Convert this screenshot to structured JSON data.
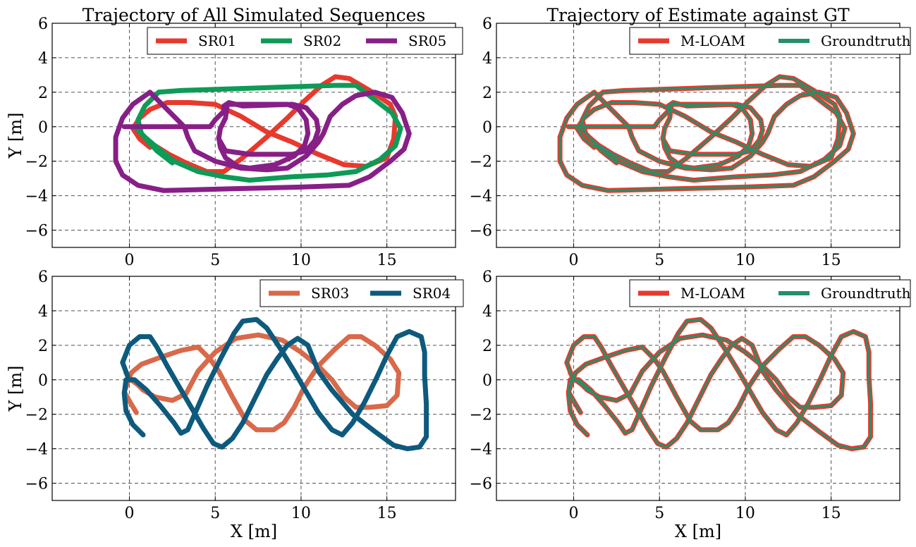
{
  "chart_data": [
    {
      "type": "line",
      "title": "Trajectory of All Simulated Sequences",
      "xlabel": "",
      "ylabel": "Y [m]",
      "xlim": [
        -4.5,
        19
      ],
      "ylim": [
        -7,
        6
      ],
      "xticks": [
        0,
        5,
        10,
        15
      ],
      "yticks": [
        -6,
        -4,
        -2,
        0,
        2,
        4,
        6
      ],
      "grid": true,
      "legend": "top-right",
      "legend_columns": 3,
      "series": [
        {
          "name": "SR01",
          "color": "#e8392d",
          "width": 7,
          "points": [
            [
              1.2,
              -1.2
            ],
            [
              0.6,
              -0.7
            ],
            [
              0.2,
              -0.1
            ],
            [
              0.6,
              0.5
            ],
            [
              1.2,
              1.0
            ],
            [
              2.2,
              1.4
            ],
            [
              3.5,
              1.4
            ],
            [
              5.0,
              1.3
            ],
            [
              6.5,
              0.6
            ],
            [
              8.0,
              -0.3
            ],
            [
              9.5,
              -0.9
            ],
            [
              11.0,
              -1.6
            ],
            [
              12.5,
              -2.2
            ],
            [
              13.8,
              -2.3
            ],
            [
              15.0,
              -1.8
            ],
            [
              15.4,
              -0.7
            ],
            [
              15.5,
              0.6
            ],
            [
              15.2,
              1.3
            ],
            [
              14.0,
              2.1
            ],
            [
              12.8,
              2.8
            ],
            [
              12.0,
              2.9
            ],
            [
              11.2,
              2.4
            ],
            [
              10.2,
              1.5
            ],
            [
              9.2,
              0.5
            ],
            [
              8.0,
              -0.6
            ],
            [
              6.6,
              -1.8
            ],
            [
              5.5,
              -2.6
            ],
            [
              4.5,
              -2.6
            ],
            [
              3.3,
              -2.1
            ],
            [
              2.3,
              -1.6
            ],
            [
              1.5,
              -1.1
            ]
          ]
        },
        {
          "name": "SR02",
          "color": "#0d9b57",
          "width": 7,
          "points": [
            [
              2.5,
              -2.1
            ],
            [
              1.6,
              -1.4
            ],
            [
              0.7,
              -0.4
            ],
            [
              0.5,
              0.4
            ],
            [
              0.9,
              1.2
            ],
            [
              1.7,
              2.0
            ],
            [
              3.0,
              2.1
            ],
            [
              6.0,
              2.2
            ],
            [
              9.0,
              2.3
            ],
            [
              12.0,
              2.4
            ],
            [
              13.2,
              2.4
            ],
            [
              14.5,
              1.4
            ],
            [
              15.3,
              0.8
            ],
            [
              15.8,
              -0.1
            ],
            [
              15.5,
              -1.1
            ],
            [
              14.6,
              -1.9
            ],
            [
              13.2,
              -2.6
            ],
            [
              11.5,
              -2.8
            ],
            [
              9.5,
              -2.9
            ],
            [
              7.0,
              -3.1
            ],
            [
              5.5,
              -2.9
            ],
            [
              4.0,
              -2.6
            ],
            [
              2.6,
              -2.0
            ],
            [
              1.6,
              -1.2
            ],
            [
              0.9,
              -0.6
            ],
            [
              0.4,
              -0.1
            ]
          ]
        },
        {
          "name": "SR05",
          "color": "#871f87",
          "width": 7,
          "points": [
            [
              -0.3,
              0.0
            ],
            [
              2.0,
              0.0
            ],
            [
              3.2,
              0.0
            ],
            [
              3.4,
              -0.6
            ],
            [
              3.8,
              -1.4
            ],
            [
              5.0,
              -2.0
            ],
            [
              6.5,
              -2.4
            ],
            [
              8.0,
              -2.5
            ],
            [
              9.2,
              -2.4
            ],
            [
              10.3,
              -1.7
            ],
            [
              11.0,
              -0.9
            ],
            [
              11.3,
              -0.4
            ],
            [
              11.7,
              0.6
            ],
            [
              12.4,
              1.3
            ],
            [
              13.2,
              1.8
            ],
            [
              14.3,
              2.0
            ],
            [
              15.3,
              1.7
            ],
            [
              15.9,
              0.8
            ],
            [
              16.3,
              -0.4
            ],
            [
              16.0,
              -1.3
            ],
            [
              15.2,
              -2.0
            ],
            [
              14.0,
              -2.9
            ],
            [
              12.8,
              -3.4
            ],
            [
              10.0,
              -3.5
            ],
            [
              6.0,
              -3.6
            ],
            [
              2.0,
              -3.7
            ],
            [
              0.5,
              -3.4
            ],
            [
              -0.4,
              -2.8
            ],
            [
              -0.8,
              -2.0
            ],
            [
              -0.8,
              -0.6
            ],
            [
              -0.4,
              0.5
            ],
            [
              0.2,
              1.3
            ],
            [
              1.2,
              2.0
            ],
            [
              3.2,
              0.0
            ],
            [
              4.7,
              0.0
            ],
            [
              5.0,
              0.4
            ],
            [
              5.5,
              0.9
            ],
            [
              5.5,
              1.2
            ],
            [
              5.8,
              1.4
            ],
            [
              6.6,
              1.2
            ],
            [
              9.5,
              1.3
            ],
            [
              10.3,
              1.1
            ],
            [
              10.9,
              0.4
            ],
            [
              11.0,
              -0.2
            ],
            [
              10.8,
              -0.8
            ],
            [
              10.3,
              -1.4
            ],
            [
              9.5,
              -1.6
            ],
            [
              8.2,
              -1.6
            ],
            [
              7.0,
              -1.6
            ],
            [
              5.6,
              -1.4
            ],
            [
              5.2,
              -0.7
            ],
            [
              5.3,
              -0.1
            ],
            [
              5.6,
              0.5
            ],
            [
              5.7,
              1.3
            ],
            [
              6.4,
              1.3
            ],
            [
              9.2,
              1.3
            ],
            [
              9.8,
              1.1
            ],
            [
              10.3,
              0.4
            ],
            [
              10.4,
              -0.4
            ],
            [
              10.2,
              -1.1
            ],
            [
              9.6,
              -1.7
            ],
            [
              8.5,
              -2.2
            ],
            [
              7.0,
              -2.4
            ],
            [
              6.3,
              -2.3
            ],
            [
              5.6,
              -1.8
            ],
            [
              5.3,
              -1.2
            ],
            [
              5.2,
              -0.6
            ]
          ]
        }
      ]
    },
    {
      "type": "line",
      "title": "Trajectory of Estimate against GT",
      "xlabel": "",
      "ylabel": "",
      "xlim": [
        -4.5,
        19
      ],
      "ylim": [
        -7,
        6
      ],
      "xticks": [
        0,
        5,
        10,
        15
      ],
      "yticks": [
        -6,
        -4,
        -2,
        0,
        2,
        4,
        6
      ],
      "grid": true,
      "legend": "top-right",
      "legend_columns": 2,
      "overlay": "combined",
      "series": [
        {
          "name": "M-LOAM",
          "color": "#e8392d",
          "width": 7
        },
        {
          "name": "Groundtruth",
          "color": "#23906a",
          "width": 3
        }
      ]
    },
    {
      "type": "line",
      "title": "",
      "xlabel": "X [m]",
      "ylabel": "Y [m]",
      "xlim": [
        -4.5,
        19
      ],
      "ylim": [
        -7,
        6
      ],
      "xticks": [
        0,
        5,
        10,
        15
      ],
      "yticks": [
        -6,
        -4,
        -2,
        0,
        2,
        4,
        6
      ],
      "grid": true,
      "legend": "top-right",
      "legend_columns": 2,
      "series": [
        {
          "name": "SR03",
          "color": "#d8694a",
          "width": 7,
          "points": [
            [
              0.4,
              -1.9
            ],
            [
              0.1,
              -1.4
            ],
            [
              -0.3,
              -0.7
            ],
            [
              0.1,
              0.4
            ],
            [
              0.7,
              0.9
            ],
            [
              1.8,
              1.3
            ],
            [
              3.0,
              1.7
            ],
            [
              4.0,
              1.9
            ],
            [
              4.7,
              1.2
            ],
            [
              5.2,
              0.5
            ],
            [
              6.0,
              -1.0
            ],
            [
              6.8,
              -2.4
            ],
            [
              7.4,
              -2.9
            ],
            [
              8.4,
              -2.9
            ],
            [
              9.0,
              -2.5
            ],
            [
              9.6,
              -1.6
            ],
            [
              10.2,
              -0.4
            ],
            [
              11.0,
              0.8
            ],
            [
              12.0,
              1.8
            ],
            [
              12.8,
              2.5
            ],
            [
              13.5,
              2.5
            ],
            [
              14.3,
              2.0
            ],
            [
              15.2,
              1.2
            ],
            [
              15.7,
              0.4
            ],
            [
              15.6,
              -0.9
            ],
            [
              15.0,
              -1.5
            ],
            [
              14.0,
              -1.6
            ],
            [
              13.2,
              -1.6
            ],
            [
              12.5,
              -1.0
            ],
            [
              11.8,
              0.0
            ],
            [
              11.0,
              0.8
            ],
            [
              10.0,
              1.6
            ],
            [
              8.9,
              2.3
            ],
            [
              7.5,
              2.6
            ],
            [
              6.2,
              2.4
            ],
            [
              5.0,
              1.6
            ],
            [
              4.0,
              0.5
            ],
            [
              3.3,
              -0.8
            ],
            [
              2.5,
              -1.2
            ],
            [
              1.5,
              -1.0
            ],
            [
              0.8,
              -0.6
            ],
            [
              0.5,
              -0.3
            ],
            [
              0.1,
              0.0
            ],
            [
              -0.2,
              0.4
            ]
          ]
        },
        {
          "name": "SR04",
          "color": "#0d5a7d",
          "width": 7,
          "points": [
            [
              0.8,
              -3.2
            ],
            [
              0.2,
              -2.6
            ],
            [
              -0.2,
              -1.8
            ],
            [
              -0.3,
              -0.8
            ],
            [
              -0.2,
              0.0
            ],
            [
              0.3,
              0.0
            ],
            [
              1.0,
              -0.6
            ],
            [
              1.8,
              -1.5
            ],
            [
              2.6,
              -2.5
            ],
            [
              3.0,
              -3.1
            ],
            [
              3.4,
              -2.9
            ],
            [
              3.8,
              -2.0
            ],
            [
              4.5,
              -0.4
            ],
            [
              5.3,
              1.2
            ],
            [
              6.1,
              2.7
            ],
            [
              6.6,
              3.4
            ],
            [
              7.4,
              3.5
            ],
            [
              8.0,
              3.0
            ],
            [
              8.8,
              1.8
            ],
            [
              9.6,
              0.5
            ],
            [
              10.3,
              -0.7
            ],
            [
              11.0,
              -1.9
            ],
            [
              11.8,
              -2.9
            ],
            [
              12.4,
              -3.2
            ],
            [
              13.0,
              -2.5
            ],
            [
              13.7,
              -1.3
            ],
            [
              14.4,
              0.1
            ],
            [
              15.0,
              1.4
            ],
            [
              15.6,
              2.5
            ],
            [
              16.3,
              2.8
            ],
            [
              17.0,
              2.5
            ],
            [
              17.2,
              1.6
            ],
            [
              17.2,
              0.2
            ],
            [
              17.3,
              -1.4
            ],
            [
              17.3,
              -3.3
            ],
            [
              16.9,
              -3.9
            ],
            [
              16.2,
              -4.0
            ],
            [
              15.4,
              -3.8
            ],
            [
              14.3,
              -3.0
            ],
            [
              13.0,
              -2.0
            ],
            [
              11.8,
              -0.6
            ],
            [
              11.0,
              0.5
            ],
            [
              10.4,
              2.0
            ],
            [
              9.8,
              2.4
            ],
            [
              9.2,
              2.0
            ],
            [
              8.6,
              1.2
            ],
            [
              8.0,
              0.3
            ],
            [
              7.3,
              -1.1
            ],
            [
              6.6,
              -2.5
            ],
            [
              6.0,
              -3.4
            ],
            [
              5.4,
              -3.9
            ],
            [
              4.9,
              -3.7
            ],
            [
              4.3,
              -2.8
            ],
            [
              3.6,
              -1.6
            ],
            [
              2.9,
              -0.4
            ],
            [
              2.2,
              0.8
            ],
            [
              1.6,
              1.9
            ],
            [
              1.2,
              2.5
            ],
            [
              0.6,
              2.5
            ],
            [
              0.0,
              2.0
            ],
            [
              -0.4,
              1.0
            ],
            [
              -0.1,
              0.2
            ]
          ]
        }
      ]
    },
    {
      "type": "line",
      "title": "",
      "xlabel": "X [m]",
      "ylabel": "",
      "xlim": [
        -4.5,
        19
      ],
      "ylim": [
        -7,
        6
      ],
      "xticks": [
        0,
        5,
        10,
        15
      ],
      "yticks": [
        -6,
        -4,
        -2,
        0,
        2,
        4,
        6
      ],
      "grid": true,
      "legend": "top-right",
      "legend_columns": 2,
      "overlay": "combined",
      "series": [
        {
          "name": "M-LOAM",
          "color": "#e8392d",
          "width": 7
        },
        {
          "name": "Groundtruth",
          "color": "#23906a",
          "width": 3
        }
      ]
    }
  ]
}
